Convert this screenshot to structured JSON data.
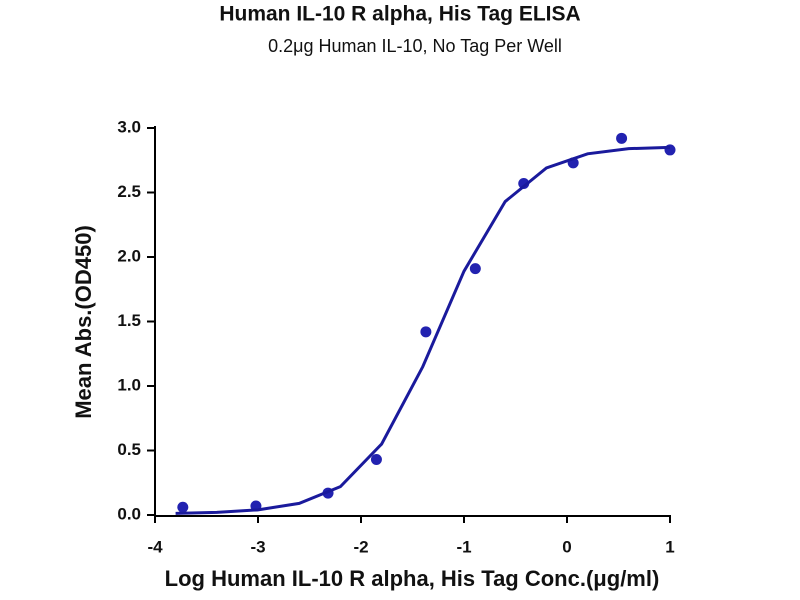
{
  "chart_data": {
    "type": "scatter",
    "title": "Human IL-10 R alpha, His Tag ELISA",
    "subtitle": "0.2μg Human IL-10, No Tag Per Well",
    "x_label": "Log Human IL-10 R alpha, His Tag Conc.(μg/ml)",
    "y_label": "Mean Abs.(OD450)",
    "xlim": [
      -4,
      1
    ],
    "xticks": [
      -4,
      -3,
      -2,
      -1,
      0,
      1
    ],
    "ylim": [
      0,
      3
    ],
    "yticks": [
      {
        "value": 0,
        "label": "0.0"
      },
      0.5,
      {
        "value": 1,
        "label": "1.0"
      },
      1.5,
      {
        "value": 2,
        "label": "2.0"
      },
      2.5,
      {
        "value": 3,
        "label": "3.0"
      }
    ],
    "series": [
      {
        "type": "scatter",
        "color": "#2222b0",
        "x": [
          -3.73,
          -3.02,
          -2.32,
          -1.85,
          -1.37,
          -0.89,
          -0.42,
          0.06,
          0.53,
          1.0
        ],
        "values": [
          0.06,
          0.07,
          0.17,
          0.43,
          1.42,
          1.91,
          2.57,
          2.73,
          2.92,
          2.83
        ]
      },
      {
        "type": "line",
        "color": "#1a1a9c",
        "x": [
          -3.8,
          -3.4,
          -3.0,
          -2.6,
          -2.2,
          -1.8,
          -1.4,
          -1.0,
          -0.6,
          -0.2,
          0.2,
          0.6,
          1.0
        ],
        "values": [
          0.013,
          0.02,
          0.04,
          0.09,
          0.22,
          0.55,
          1.15,
          1.89,
          2.43,
          2.69,
          2.8,
          2.84,
          2.85
        ]
      }
    ]
  }
}
